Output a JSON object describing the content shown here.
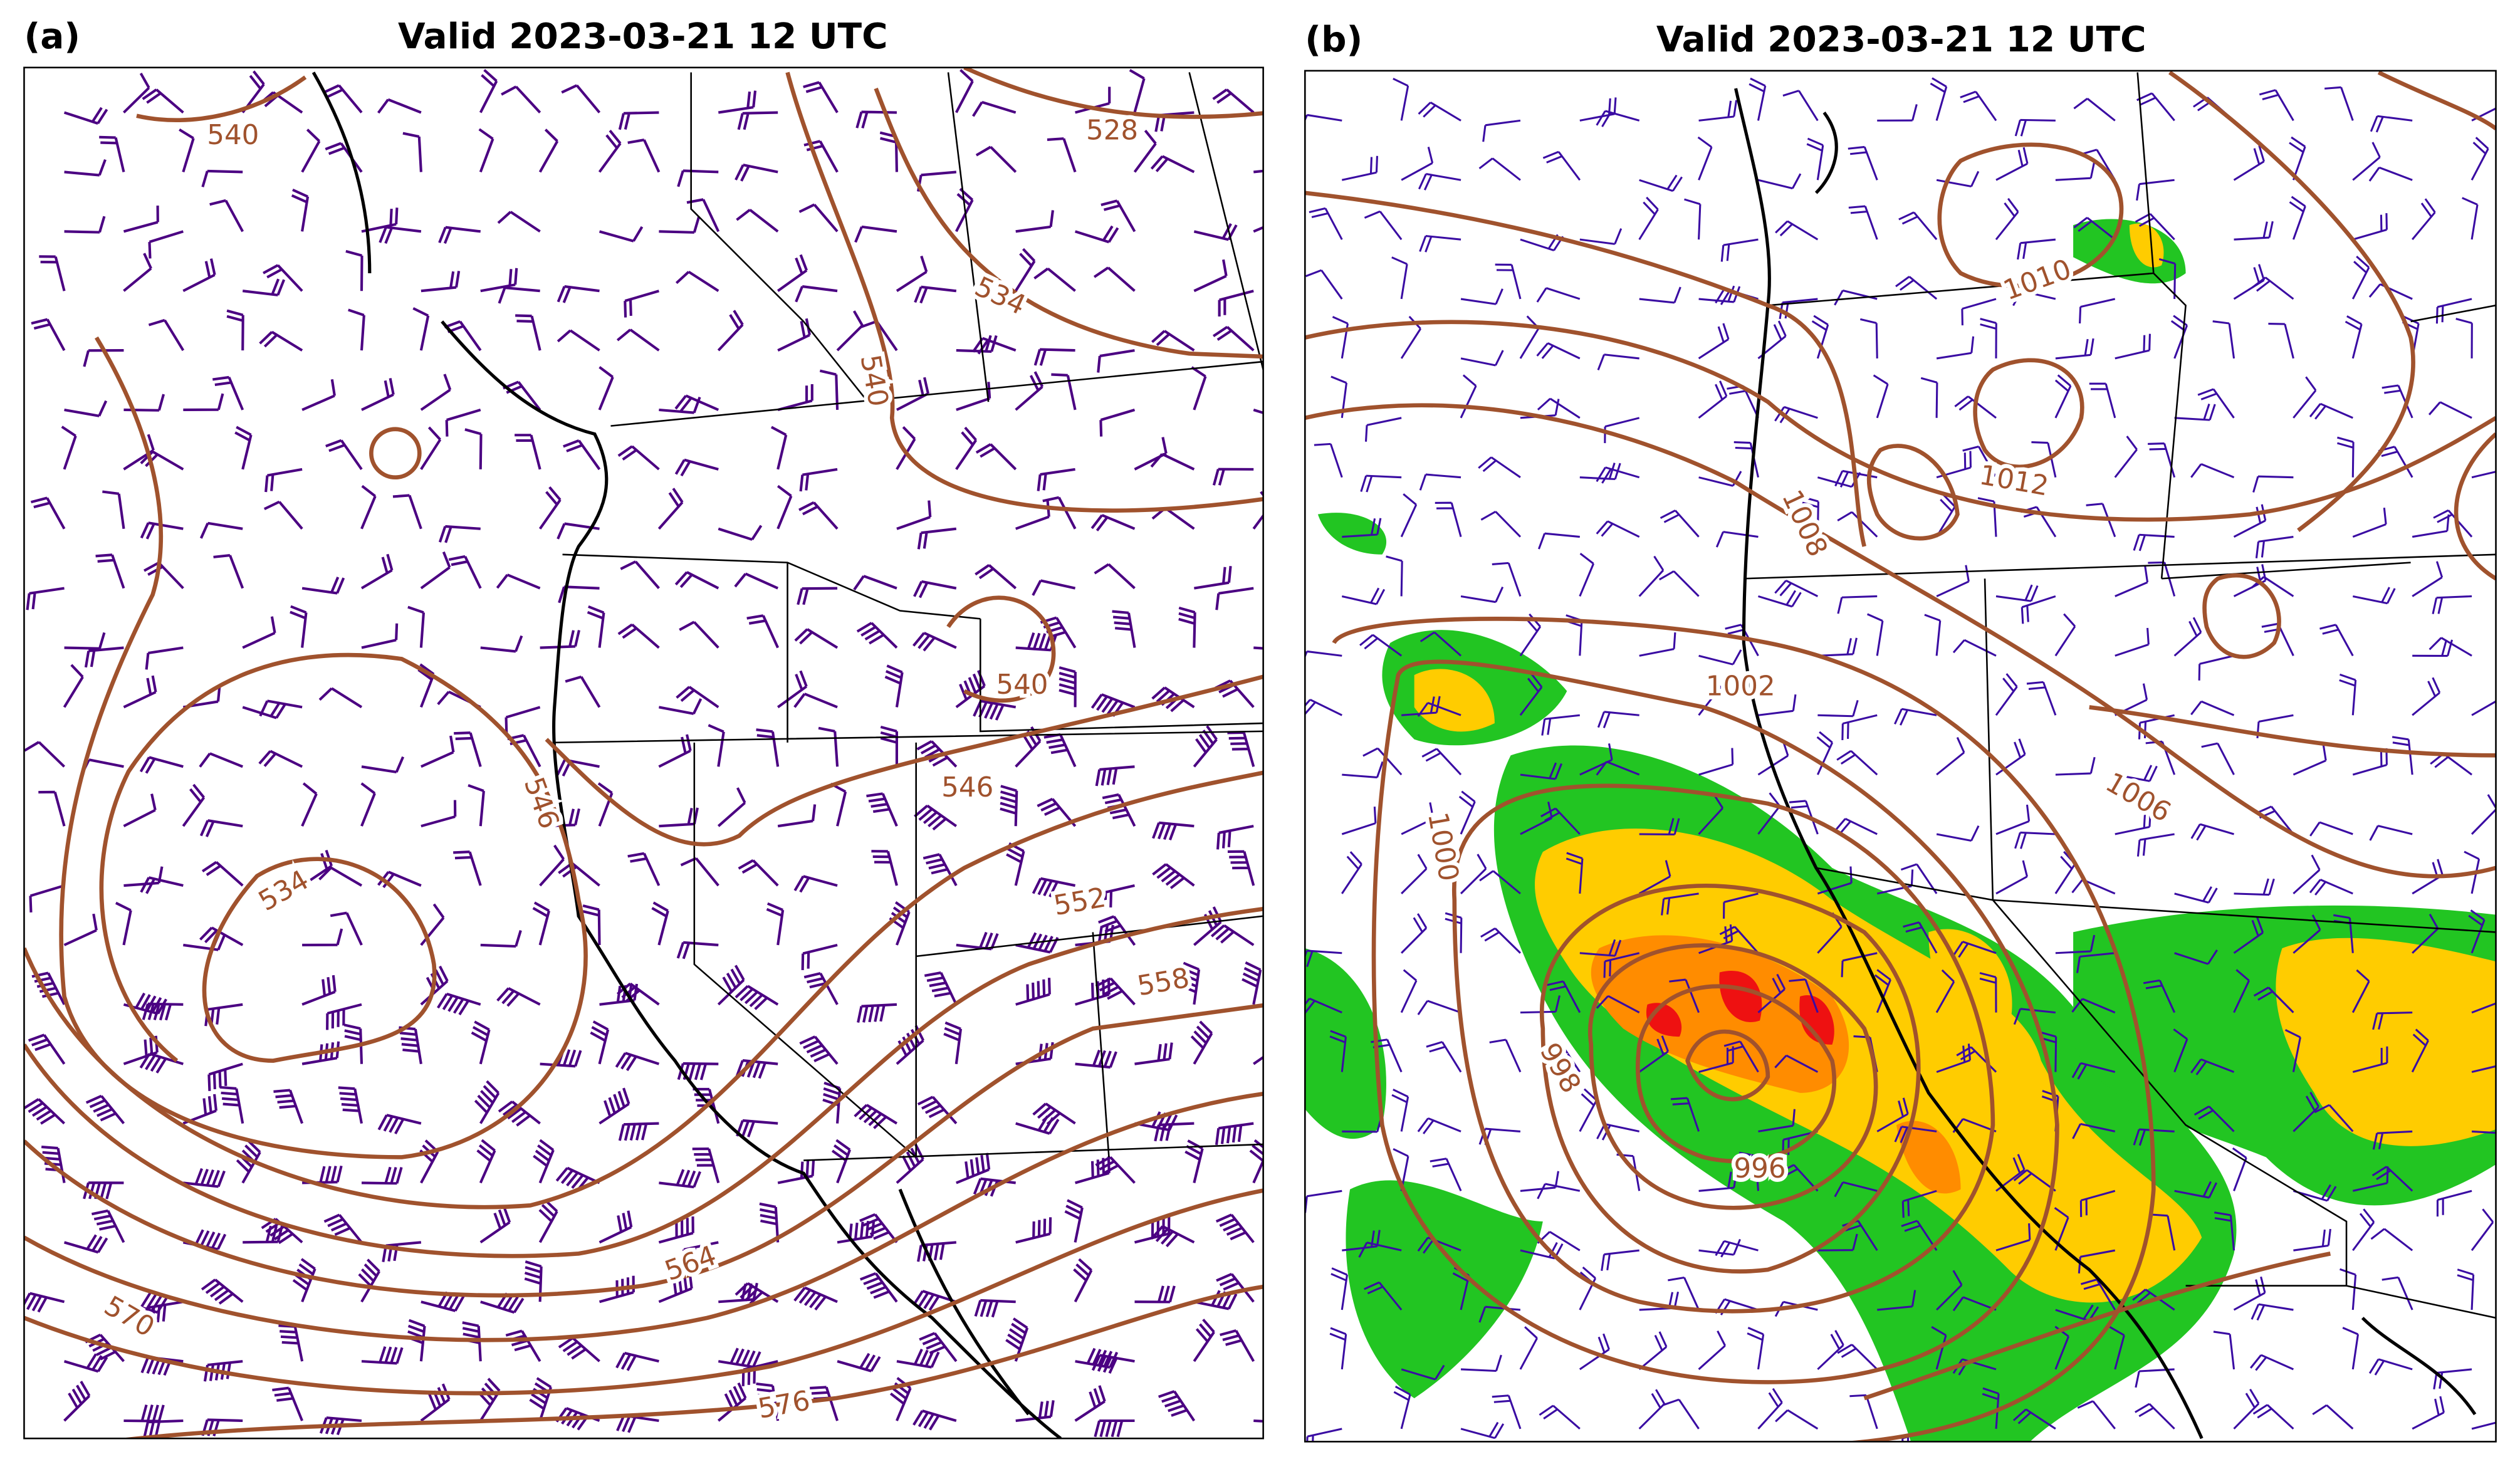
{
  "panels": [
    {
      "label": "(a)",
      "title": "Valid 2023-03-21 12 UTC",
      "contour_labels": [
        "540",
        "528",
        "534",
        "540",
        "540",
        "546",
        "546",
        "552",
        "558",
        "534",
        "564",
        "570",
        "576"
      ]
    },
    {
      "label": "(b)",
      "title": "Valid 2023-03-21 12 UTC",
      "contour_labels": [
        "1010",
        "1012",
        "1008",
        "1002",
        "1006",
        "1000",
        "998",
        "996"
      ]
    }
  ]
}
